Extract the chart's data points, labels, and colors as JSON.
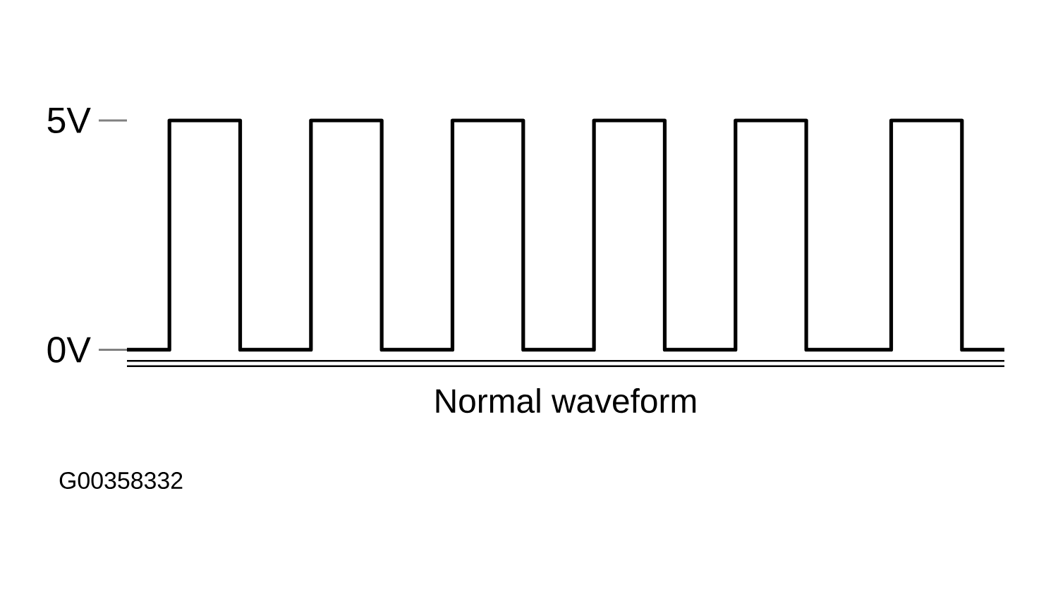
{
  "chart_data": {
    "type": "step",
    "xlabel": "Normal waveform",
    "annotations": [
      "G00358332"
    ],
    "tick_labels": "y",
    "ylim": [
      -0.3,
      5
    ],
    "yticks": [
      {
        "value": 0,
        "label": "0V"
      },
      {
        "value": 5,
        "label": "5V"
      }
    ],
    "categories": [
      null,
      null,
      null,
      null,
      null,
      null,
      null,
      null,
      null,
      null,
      null,
      null,
      null,
      null,
      null,
      null,
      null,
      null,
      null,
      null,
      null,
      null,
      null,
      null,
      null,
      null,
      null,
      null,
      null,
      null,
      null,
      null,
      null,
      null,
      null,
      null,
      null,
      null,
      null,
      null,
      null,
      null,
      null,
      null,
      null,
      null,
      null,
      null,
      null,
      null,
      null,
      null,
      null,
      null,
      null,
      null,
      null,
      null,
      null,
      null,
      null,
      null,
      null
    ],
    "series": [
      {
        "color": "#000000",
        "values": [
          0,
          0,
          0,
          5,
          5,
          5,
          5,
          5,
          0,
          0,
          0,
          0,
          0,
          5,
          5,
          5,
          5,
          5,
          0,
          0,
          0,
          0,
          0,
          5,
          5,
          5,
          5,
          5,
          0,
          0,
          0,
          0,
          0,
          5,
          5,
          5,
          5,
          5,
          0,
          0,
          0,
          0,
          0,
          5,
          5,
          5,
          5,
          5,
          0,
          0,
          0,
          0,
          0,
          0,
          5,
          5,
          5,
          5,
          5,
          0,
          0,
          0,
          0
        ]
      }
    ]
  }
}
